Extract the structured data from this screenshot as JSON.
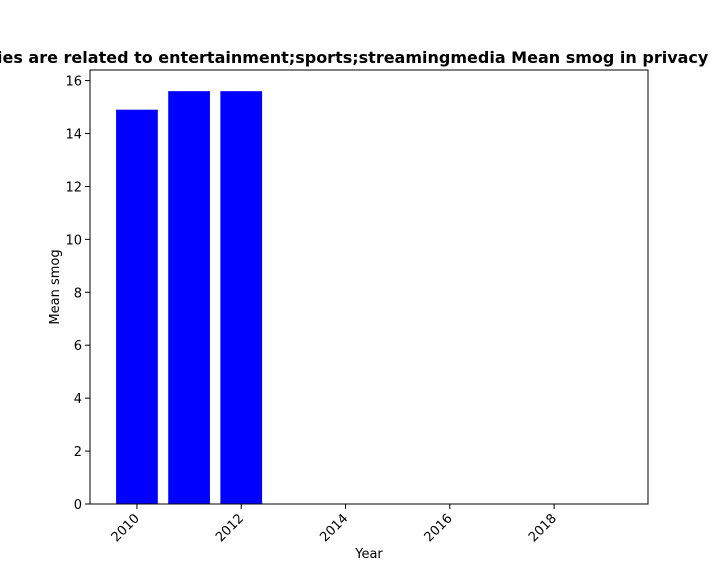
{
  "chart_data": {
    "type": "bar",
    "title": "ies are related to entertainment;sports;streamingmedia Mean smog in privacy",
    "xlabel": "Year",
    "ylabel": "Mean smog",
    "x": [
      2010,
      2011,
      2012
    ],
    "values": [
      14.9,
      15.6,
      15.6
    ],
    "xlim": [
      2009.1,
      2019.8
    ],
    "ylim": [
      0,
      16.4
    ],
    "xticks": [
      "2010",
      "2012",
      "2014",
      "2016",
      "2018"
    ],
    "yticks": [
      "0",
      "2",
      "4",
      "6",
      "8",
      "10",
      "12",
      "14",
      "16"
    ],
    "bar_color": "#0000ff",
    "grid": false
  }
}
